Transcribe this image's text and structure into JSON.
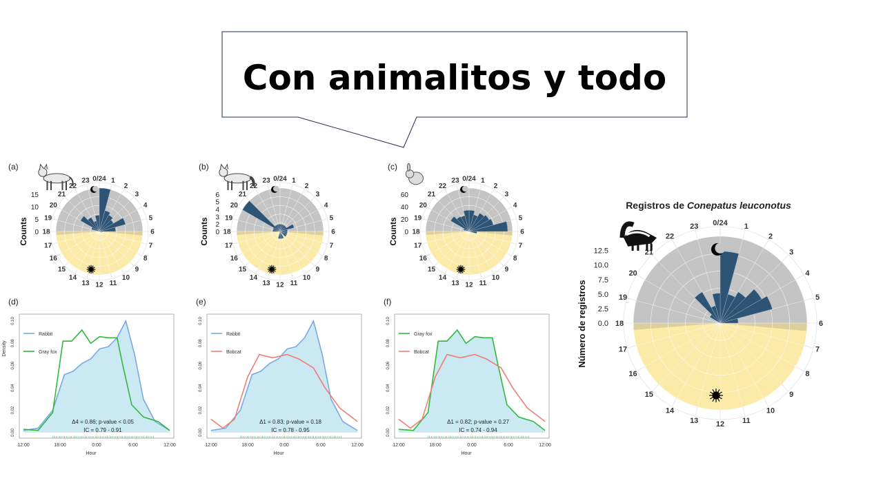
{
  "callout": {
    "text": "Con animalitos y todo"
  },
  "rose_panels": [
    {
      "label": "(a)",
      "ylabel": "Counts",
      "yticks": [
        "15",
        "10",
        "5",
        "0"
      ],
      "counts": [
        16,
        8,
        7,
        6,
        10,
        6,
        1,
        0,
        0,
        0,
        0,
        0,
        0,
        0,
        0,
        0,
        0,
        0,
        0,
        3,
        8,
        6,
        4,
        6
      ]
    },
    {
      "label": "(b)",
      "ylabel": "Counts",
      "yticks": [
        "6",
        "5",
        "4",
        "3",
        "2",
        "0"
      ],
      "counts": [
        1,
        1,
        1,
        1,
        2,
        1,
        1,
        1,
        1,
        0,
        1,
        1,
        1,
        0,
        0,
        0,
        0,
        0,
        1,
        1,
        6,
        1,
        1,
        1
      ]
    },
    {
      "label": "(c)",
      "ylabel": "Counts",
      "yticks": [
        "60",
        "40",
        "20",
        "0"
      ],
      "counts": [
        22,
        18,
        22,
        24,
        26,
        40,
        8,
        0,
        0,
        0,
        0,
        0,
        0,
        0,
        0,
        0,
        0,
        0,
        0,
        6,
        22,
        18,
        17,
        22
      ]
    }
  ],
  "density_panels": [
    {
      "label": "(d)",
      "ylabel": "Density",
      "xlabel": "Hour",
      "yticks": [
        "0.00",
        "0.02",
        "0.04",
        "0.06",
        "0.08",
        "0.10"
      ],
      "xticks": [
        "12:00",
        "18:00",
        "0:00",
        "6:00",
        "12:00"
      ],
      "legend": [
        "Rabbit",
        "Gray fox"
      ],
      "annot1": "Δ4 = 0.86; p-value < 0.05",
      "annot2": "IC = 0.79 - 0.91"
    },
    {
      "label": "(e)",
      "ylabel": "",
      "xlabel": "Hour",
      "yticks": [
        "0.00",
        "0.02",
        "0.04",
        "0.06",
        "0.08",
        "0.10"
      ],
      "xticks": [
        "12:00",
        "18:00",
        "0:00",
        "6:00",
        "12:00"
      ],
      "legend": [
        "Rabbit",
        "Bobcat"
      ],
      "annot1": "Δ1 = 0.83; p-value = 0.18",
      "annot2": "IC = 0.78 - 0.95"
    },
    {
      "label": "(f)",
      "ylabel": "",
      "xlabel": "Hour",
      "yticks": [
        "0.00",
        "0.02",
        "0.04",
        "0.06",
        "0.08",
        "0.10"
      ],
      "xticks": [
        "12:00",
        "18:00",
        "0:00",
        "6:00",
        "12:00"
      ],
      "legend": [
        "Gray fox",
        "Bobcat"
      ],
      "annot1": "Δ1 = 0.82; p-value = 0.27",
      "annot2": "IC = 0.74 - 0.94"
    }
  ],
  "big_rose": {
    "title_prefix": "Registros de ",
    "title_species": "Conepatus leuconotus",
    "ylabel": "Número de registros",
    "yticks": [
      "12.5",
      "10.0",
      "7.5",
      "5.0",
      "2.5",
      "0.0"
    ],
    "counts": [
      12,
      5,
      6,
      8,
      9,
      3,
      0,
      0,
      0,
      0,
      0,
      0,
      0,
      0,
      0,
      0,
      0,
      0,
      0,
      0,
      2,
      6,
      3,
      5
    ]
  },
  "hour_labels": [
    "0/24",
    "1",
    "2",
    "3",
    "4",
    "5",
    "6",
    "7",
    "8",
    "9",
    "10",
    "11",
    "12",
    "13",
    "14",
    "15",
    "16",
    "17",
    "18",
    "19",
    "20",
    "21",
    "22",
    "23"
  ],
  "colors": {
    "bar": "#2e5475",
    "night": "#c4c4c4",
    "day": "#fbeaa8",
    "dusk": "#ddcf9b",
    "fill": "#cbe9f3",
    "blue": "#7aa8e4",
    "green": "#2fb83a",
    "red": "#ef7d72"
  },
  "icons": [
    "lynx-icon",
    "fox-icon",
    "rabbit-icon",
    "skunk-icon",
    "moon-icon",
    "sun-icon"
  ]
}
